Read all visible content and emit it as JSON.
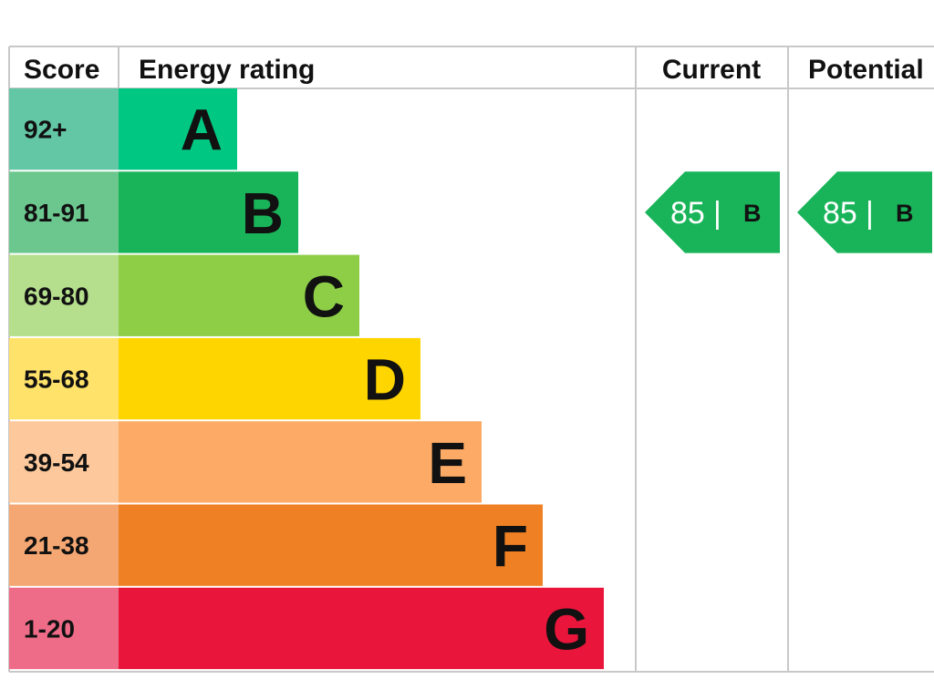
{
  "chart_data": {
    "type": "bar",
    "headers": {
      "score": "Score",
      "rating": "Energy rating",
      "current": "Current",
      "potential": "Potential"
    },
    "bands": [
      {
        "letter": "A",
        "range": "92+",
        "color": "#00c781",
        "score_bg": "#63c6a5"
      },
      {
        "letter": "B",
        "range": "81-91",
        "color": "#19b459",
        "score_bg": "#6cc78f"
      },
      {
        "letter": "C",
        "range": "69-80",
        "color": "#8dce46",
        "score_bg": "#b5de8d"
      },
      {
        "letter": "D",
        "range": "55-68",
        "color": "#ffd500",
        "score_bg": "#ffe26a"
      },
      {
        "letter": "E",
        "range": "39-54",
        "color": "#fcaa65",
        "score_bg": "#fdc89b"
      },
      {
        "letter": "F",
        "range": "21-38",
        "color": "#ef8023",
        "score_bg": "#f4a772"
      },
      {
        "letter": "G",
        "range": "1-20",
        "color": "#e9153b",
        "score_bg": "#ef6c88"
      }
    ],
    "current": {
      "score": "85",
      "separator": "|",
      "band": "B"
    },
    "potential": {
      "score": "85",
      "separator": "|",
      "band": "B"
    }
  }
}
